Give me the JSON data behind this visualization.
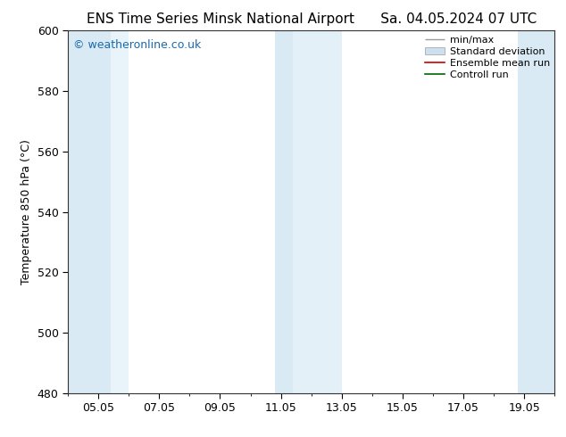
{
  "title_left": "ENS Time Series Minsk National Airport",
  "title_right": "Sa. 04.05.2024 07 UTC",
  "ylabel": "Temperature 850 hPa (°C)",
  "ylim": [
    480,
    600
  ],
  "yticks": [
    480,
    500,
    520,
    540,
    560,
    580,
    600
  ],
  "xlim": [
    0,
    16
  ],
  "xtick_labels": [
    "05.05",
    "07.05",
    "09.05",
    "11.05",
    "13.05",
    "15.05",
    "17.05",
    "19.05"
  ],
  "xtick_positions": [
    1.0,
    3.0,
    5.0,
    7.0,
    9.0,
    11.0,
    13.0,
    15.0
  ],
  "bg_color": "#ffffff",
  "plot_bg_color": "#ffffff",
  "shaded_bands": [
    {
      "x_start": 0.0,
      "x_end": 1.4,
      "color": "#daeaf5"
    },
    {
      "x_start": 1.4,
      "x_end": 2.0,
      "color": "#e8f3fa"
    },
    {
      "x_start": 6.8,
      "x_end": 7.4,
      "color": "#daeaf5"
    },
    {
      "x_start": 7.4,
      "x_end": 9.0,
      "color": "#e4f0f8"
    },
    {
      "x_start": 14.8,
      "x_end": 16.0,
      "color": "#daeaf5"
    }
  ],
  "legend_entries": [
    {
      "label": "min/max",
      "color": "#aaaaaa",
      "style": "minmax"
    },
    {
      "label": "Standard deviation",
      "color": "#c8dff0",
      "style": "fill"
    },
    {
      "label": "Ensemble mean run",
      "color": "#cc0000",
      "style": "line"
    },
    {
      "label": "Controll run",
      "color": "#006600",
      "style": "line"
    }
  ],
  "watermark_text": "© weatheronline.co.uk",
  "watermark_color": "#1a6aad",
  "title_fontsize": 11,
  "ylabel_fontsize": 9,
  "tick_fontsize": 9,
  "legend_fontsize": 8,
  "watermark_fontsize": 9
}
